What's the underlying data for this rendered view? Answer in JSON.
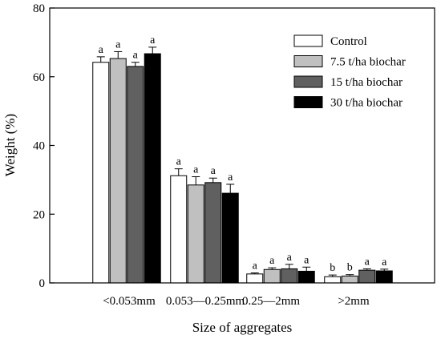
{
  "chart_data": {
    "type": "bar",
    "title": "",
    "xlabel": "Size of aggregates",
    "ylabel": "Weight (%)",
    "ylim": [
      0,
      80
    ],
    "yticks": [
      0,
      20,
      40,
      60,
      80
    ],
    "grid": false,
    "legend_position": "top-right",
    "categories": [
      "<0.053mm",
      "0.053—0.25mm",
      "0.25—2mm",
      ">2mm"
    ],
    "series": [
      {
        "name": "Control",
        "color": "#ffffff",
        "values": [
          64.2,
          31.2,
          2.6,
          1.8
        ],
        "errors": [
          1.6,
          2.0,
          0.3,
          0.5
        ],
        "letters": [
          "a",
          "a",
          "a",
          "b"
        ]
      },
      {
        "name": "7.5 t/ha biochar",
        "color": "#c0c0c0",
        "values": [
          65.3,
          28.5,
          3.9,
          2.0
        ],
        "errors": [
          2.0,
          2.4,
          0.5,
          0.4
        ],
        "letters": [
          "a",
          "a",
          "a",
          "b"
        ]
      },
      {
        "name": "15 t/ha biochar",
        "color": "#606060",
        "values": [
          63.0,
          29.2,
          4.1,
          3.7
        ],
        "errors": [
          1.2,
          1.3,
          1.3,
          0.4
        ],
        "letters": [
          "a",
          "a",
          "a",
          "a"
        ]
      },
      {
        "name": "30 t/ha biochar",
        "color": "#000000",
        "values": [
          66.7,
          26.1,
          3.4,
          3.5
        ],
        "errors": [
          1.9,
          2.6,
          1.2,
          0.5
        ],
        "letters": [
          "a",
          "a",
          "a",
          "a"
        ]
      }
    ]
  }
}
